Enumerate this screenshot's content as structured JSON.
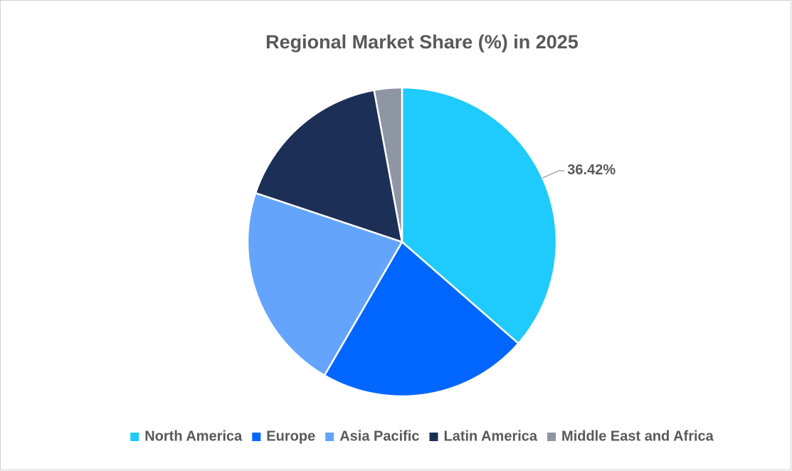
{
  "chart_data": {
    "type": "pie",
    "title": "Regional Market Share (%) in 2025",
    "categories": [
      "North America",
      "Europe",
      "Asia Pacific",
      "Latin America",
      "Middle East and Africa"
    ],
    "values": [
      36.42,
      21.96,
      21.75,
      16.97,
      2.9
    ],
    "value_labels": [
      "36.42%",
      null,
      null,
      null,
      null
    ],
    "colors": [
      "#1ecbfc",
      "#0066ff",
      "#64a4fc",
      "#1c2f56",
      "#8e96a4"
    ],
    "legend": "bottom"
  }
}
